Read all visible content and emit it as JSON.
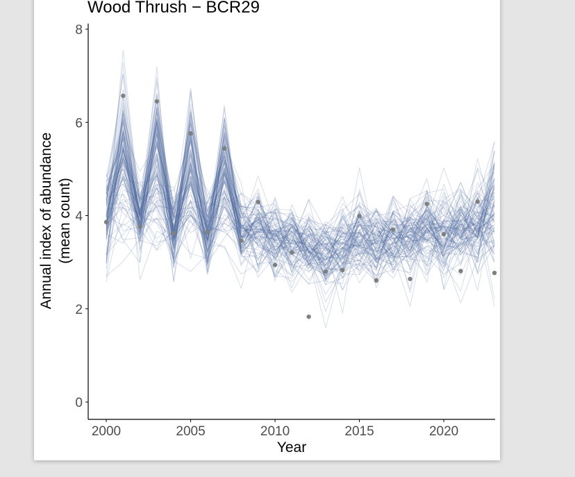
{
  "colors": {
    "page_background": "#e5e5e5",
    "panel": "#ffffff",
    "series_line": "#4a6699",
    "observed_point": "#7f7f7f",
    "axis": "#000000",
    "tick_text": "#4d4d4d"
  },
  "chart_data": {
    "type": "line",
    "title": "Wood Thrush − BCR29",
    "xlabel": "Year",
    "ylabel_line1": "Annual index of abundance",
    "ylabel_line2": "(mean count)",
    "xlim": [
      1999,
      2024.5
    ],
    "ylim": [
      0,
      8
    ],
    "grid": false,
    "legend": "none",
    "x_ticks": [
      2000,
      2005,
      2010,
      2015,
      2020
    ],
    "y_ticks": [
      0,
      2,
      4,
      6,
      8
    ],
    "years": [
      2000,
      2001,
      2002,
      2003,
      2004,
      2005,
      2006,
      2007,
      2008,
      2009,
      2010,
      2011,
      2012,
      2013,
      2014,
      2015,
      2016,
      2017,
      2018,
      2019,
      2020,
      2021,
      2022,
      2023
    ],
    "posterior_draws": {
      "count": 100,
      "median": [
        3.95,
        5.3,
        3.9,
        5.15,
        3.6,
        5.0,
        3.6,
        4.95,
        3.6,
        3.75,
        3.5,
        3.4,
        3.3,
        3.2,
        3.3,
        3.55,
        3.4,
        3.5,
        3.55,
        3.75,
        3.6,
        3.65,
        3.85,
        4.05
      ],
      "spread": [
        0.55,
        0.9,
        0.45,
        0.85,
        0.45,
        0.75,
        0.4,
        0.75,
        0.4,
        0.45,
        0.4,
        0.4,
        0.4,
        0.4,
        0.4,
        0.45,
        0.4,
        0.4,
        0.4,
        0.45,
        0.45,
        0.45,
        0.5,
        0.7
      ]
    },
    "observed": {
      "x": [
        2000,
        2001,
        2002,
        2003,
        2004,
        2005,
        2006,
        2007,
        2008,
        2009,
        2010,
        2011,
        2012,
        2013,
        2014,
        2015,
        2016,
        2017,
        2018,
        2019,
        2020,
        2021,
        2022,
        2023
      ],
      "y": [
        3.86,
        6.57,
        3.77,
        6.45,
        3.62,
        5.76,
        3.65,
        5.44,
        3.46,
        4.29,
        2.94,
        3.21,
        1.83,
        2.8,
        2.83,
        3.99,
        2.61,
        3.7,
        2.64,
        4.25,
        3.6,
        2.81,
        4.3,
        2.77
      ]
    }
  }
}
